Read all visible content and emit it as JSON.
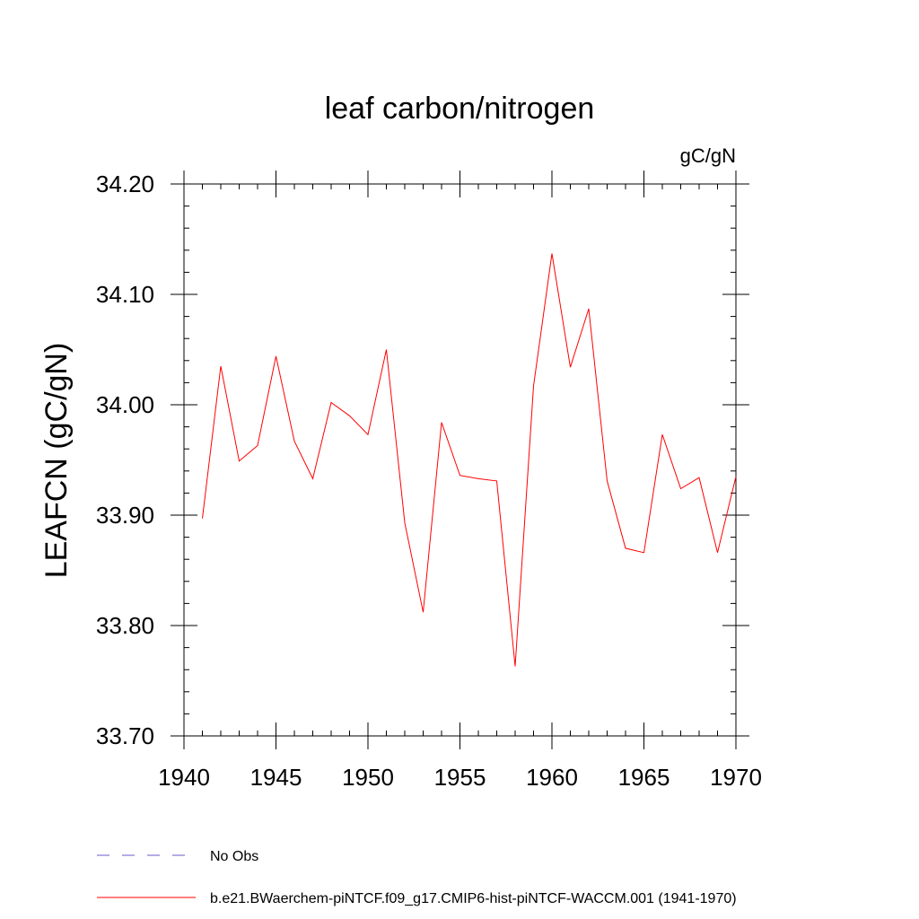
{
  "chart_data": {
    "type": "line",
    "title": "leaf carbon/nitrogen",
    "units": "gC/gN",
    "ylabel": "LEAFCN  (gC/gN)",
    "xlabel": "",
    "xlim": [
      1940,
      1970
    ],
    "ylim": [
      33.7,
      34.2
    ],
    "xticks": [
      "1940",
      "1945",
      "1950",
      "1955",
      "1960",
      "1965",
      "1970"
    ],
    "yticks": [
      "33.70",
      "33.80",
      "33.90",
      "34.00",
      "34.10",
      "34.20"
    ],
    "grid": false,
    "legend_position": "bottom-left",
    "series": [
      {
        "name": "No Obs",
        "color": "#6a5acd",
        "style": "dashed",
        "x": [],
        "values": []
      },
      {
        "name": "b.e21.BWaerchem-piNTCF.f09_g17.CMIP6-hist-piNTCF-WACCM.001 (1941-1970)",
        "color": "#ff0000",
        "style": "solid",
        "x": [
          1941,
          1942,
          1943,
          1944,
          1945,
          1946,
          1947,
          1948,
          1949,
          1950,
          1951,
          1952,
          1953,
          1954,
          1955,
          1956,
          1957,
          1958,
          1959,
          1960,
          1961,
          1962,
          1963,
          1964,
          1965,
          1966,
          1967,
          1968,
          1969,
          1970
        ],
        "values": [
          33.897,
          34.035,
          33.949,
          33.963,
          34.044,
          33.967,
          33.933,
          34.002,
          33.99,
          33.973,
          34.05,
          33.893,
          33.812,
          33.984,
          33.936,
          33.933,
          33.931,
          33.763,
          34.017,
          34.137,
          34.034,
          34.087,
          33.931,
          33.87,
          33.866,
          33.973,
          33.924,
          33.934,
          33.866,
          33.935
        ]
      }
    ]
  }
}
